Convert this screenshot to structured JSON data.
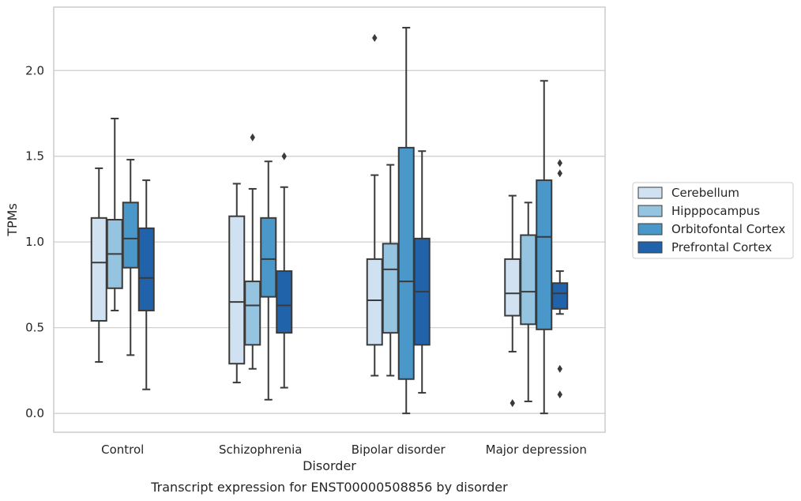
{
  "chart_data": {
    "type": "box",
    "title": "",
    "caption": "Transcript expression for ENST00000508856 by disorder",
    "xlabel": "Disorder",
    "ylabel": "TPMs",
    "ylim": [
      -0.11,
      2.37
    ],
    "yticks": [
      "0.0",
      "0.5",
      "1.0",
      "1.5",
      "2.0"
    ],
    "ytick_values": [
      0.0,
      0.5,
      1.0,
      1.5,
      2.0
    ],
    "grid": "horizontal",
    "legend_position": "right",
    "categories": [
      "Control",
      "Schizophrenia",
      "Bipolar disorder",
      "Major depression"
    ],
    "series": [
      {
        "name": "Cerebellum",
        "color": "#d0e1f2",
        "boxes": [
          {
            "whislo": 0.3,
            "q1": 0.54,
            "med": 0.88,
            "q3": 1.14,
            "whishi": 1.43,
            "fliers": []
          },
          {
            "whislo": 0.18,
            "q1": 0.29,
            "med": 0.65,
            "q3": 1.15,
            "whishi": 1.34,
            "fliers": []
          },
          {
            "whislo": 0.22,
            "q1": 0.4,
            "med": 0.66,
            "q3": 0.9,
            "whishi": 1.39,
            "fliers": [
              2.19
            ]
          },
          {
            "whislo": 0.36,
            "q1": 0.57,
            "med": 0.7,
            "q3": 0.9,
            "whishi": 1.27,
            "fliers": [
              0.06
            ]
          }
        ]
      },
      {
        "name": "Hipppocampus",
        "color": "#94c4df",
        "boxes": [
          {
            "whislo": 0.6,
            "q1": 0.73,
            "med": 0.93,
            "q3": 1.13,
            "whishi": 1.72,
            "fliers": []
          },
          {
            "whislo": 0.26,
            "q1": 0.4,
            "med": 0.63,
            "q3": 0.77,
            "whishi": 1.31,
            "fliers": [
              1.61
            ]
          },
          {
            "whislo": 0.22,
            "q1": 0.47,
            "med": 0.84,
            "q3": 0.99,
            "whishi": 1.45,
            "fliers": []
          },
          {
            "whislo": 0.07,
            "q1": 0.52,
            "med": 0.71,
            "q3": 1.04,
            "whishi": 1.23,
            "fliers": []
          }
        ]
      },
      {
        "name": "Orbitofontal Cortex",
        "color": "#4a98c9",
        "boxes": [
          {
            "whislo": 0.34,
            "q1": 0.85,
            "med": 1.02,
            "q3": 1.23,
            "whishi": 1.48,
            "fliers": []
          },
          {
            "whislo": 0.08,
            "q1": 0.68,
            "med": 0.9,
            "q3": 1.14,
            "whishi": 1.47,
            "fliers": []
          },
          {
            "whislo": 0.0,
            "q1": 0.2,
            "med": 0.77,
            "q3": 1.55,
            "whishi": 2.25,
            "fliers": []
          },
          {
            "whislo": 0.0,
            "q1": 0.49,
            "med": 1.03,
            "q3": 1.36,
            "whishi": 1.94,
            "fliers": []
          }
        ]
      },
      {
        "name": "Prefrontal Cortex",
        "color": "#2163aa",
        "boxes": [
          {
            "whislo": 0.14,
            "q1": 0.6,
            "med": 0.79,
            "q3": 1.08,
            "whishi": 1.36,
            "fliers": []
          },
          {
            "whislo": 0.15,
            "q1": 0.47,
            "med": 0.63,
            "q3": 0.83,
            "whishi": 1.32,
            "fliers": [
              1.5
            ]
          },
          {
            "whislo": 0.12,
            "q1": 0.4,
            "med": 0.71,
            "q3": 1.02,
            "whishi": 1.53,
            "fliers": []
          },
          {
            "whislo": 0.58,
            "q1": 0.61,
            "med": 0.7,
            "q3": 0.76,
            "whishi": 0.83,
            "fliers": [
              1.46,
              1.4,
              0.26,
              0.11
            ]
          }
        ]
      }
    ]
  },
  "colors": {
    "frame": "#cccccc",
    "grid": "#cccccc",
    "box_line": "#3a3a3a",
    "background": "#ffffff"
  }
}
